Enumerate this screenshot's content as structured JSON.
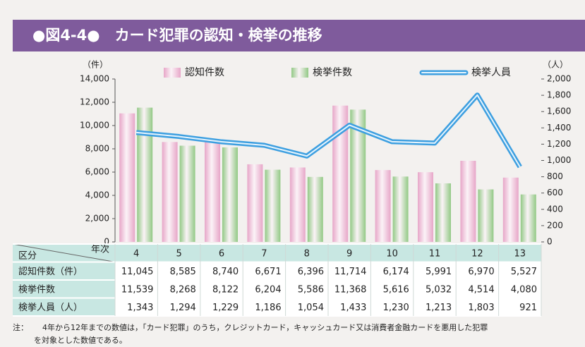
{
  "chart_data": {
    "type": "bar-line",
    "title": "●図4-4●　カード犯罪の認知・検挙の推移",
    "y_unit": "（件）",
    "y2_unit": "（人）",
    "categories": [
      "4",
      "5",
      "6",
      "7",
      "8",
      "9",
      "10",
      "11",
      "12",
      "13"
    ],
    "series": [
      {
        "name": "認知件数",
        "type": "bar",
        "color": "#e7a6c8",
        "values": [
          11045,
          8585,
          8740,
          6671,
          6396,
          11714,
          6174,
          5991,
          6970,
          5527
        ],
        "value_labels": [
          "11,045",
          "8,585",
          "8,740",
          "6,671",
          "6,396",
          "11,714",
          "6,174",
          "5,991",
          "6,970",
          "5,527"
        ]
      },
      {
        "name": "検挙件数",
        "type": "bar",
        "color": "#92c985",
        "values": [
          11539,
          8268,
          8122,
          6204,
          5586,
          11368,
          5616,
          5032,
          4514,
          4080
        ],
        "value_labels": [
          "11,539",
          "8,268",
          "8,122",
          "6,204",
          "5,586",
          "11,368",
          "5,616",
          "5,032",
          "4,514",
          "4,080"
        ]
      },
      {
        "name": "検挙人員",
        "type": "line",
        "axis": "y2",
        "color": "#3d9fe0",
        "values": [
          1343,
          1294,
          1229,
          1186,
          1054,
          1433,
          1230,
          1213,
          1803,
          921
        ],
        "value_labels": [
          "1,343",
          "1,294",
          "1,229",
          "1,186",
          "1,054",
          "1,433",
          "1,230",
          "1,213",
          "1,803",
          "921"
        ]
      }
    ],
    "ylim": [
      0,
      14000
    ],
    "yticks": [
      0,
      {
        "value": 2000,
        "label": "2,000"
      },
      {
        "value": 4000,
        "label": "4,000"
      },
      {
        "value": 6000,
        "label": "6,000"
      },
      {
        "value": 8000,
        "label": "8,000"
      },
      {
        "value": 10000,
        "label": "10,000"
      },
      {
        "value": 12000,
        "label": "12,000"
      },
      {
        "value": 14000,
        "label": "14,000"
      }
    ],
    "y2lim": [
      0,
      2000
    ],
    "y2ticks": [
      0,
      200,
      400,
      600,
      800,
      {
        "value": 1000,
        "label": "1,000"
      },
      {
        "value": 1200,
        "label": "1,200"
      },
      {
        "value": 1400,
        "label": "1,400"
      },
      {
        "value": 1600,
        "label": "1,600"
      },
      {
        "value": 1800,
        "label": "1,800"
      },
      {
        "value": 2000,
        "label": "2,000"
      }
    ],
    "table": {
      "corner_left": "区分",
      "corner_right": "年次",
      "row_labels": [
        "認知件数（件）",
        "検挙件数",
        "検挙人員（人）"
      ]
    },
    "note_label": "注：",
    "note": [
      "4年から12年までの数値は，「カード犯罪」のうち，クレジットカード，キャッシュカード又は消費者金融カードを悪用した犯罪",
      "を対象とした数値である。"
    ]
  }
}
